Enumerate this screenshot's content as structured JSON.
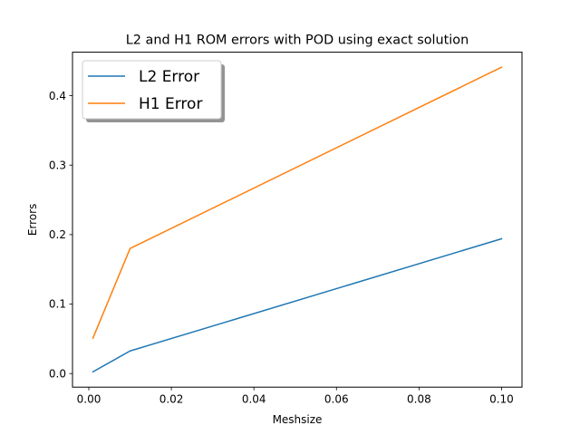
{
  "chart_data": {
    "type": "line",
    "title": "L2 and H1 ROM errors with POD using exact solution",
    "xlabel": "Meshsize",
    "ylabel": "Errors",
    "xlim": [
      -0.00395,
      0.10495
    ],
    "ylim": [
      -0.0196,
      0.4626
    ],
    "xticks": [
      0.0,
      0.02,
      0.04,
      0.06,
      0.08,
      0.1
    ],
    "xtick_labels": [
      "0.00",
      "0.02",
      "0.04",
      "0.06",
      "0.08",
      "0.10"
    ],
    "yticks": [
      0.0,
      0.1,
      0.2,
      0.3,
      0.4
    ],
    "ytick_labels": [
      "0.0",
      "0.1",
      "0.2",
      "0.3",
      "0.4"
    ],
    "legend_position": "top-left",
    "grid": false,
    "series": [
      {
        "name": "L2 Error",
        "color": "#1f77b4",
        "x": [
          0.001,
          0.01,
          0.1
        ],
        "y": [
          0.0025,
          0.0325,
          0.194
        ]
      },
      {
        "name": "H1 Error",
        "color": "#ff7f0e",
        "x": [
          0.001,
          0.01,
          0.1
        ],
        "y": [
          0.051,
          0.18,
          0.441
        ]
      }
    ]
  }
}
